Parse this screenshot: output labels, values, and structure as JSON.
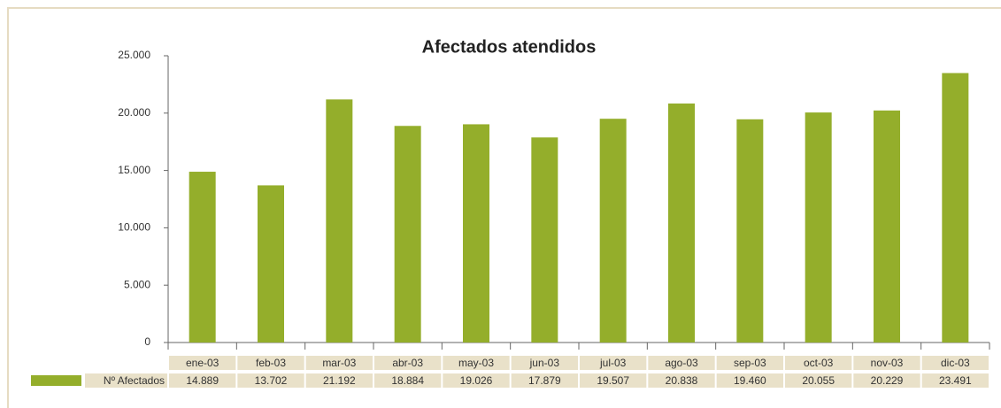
{
  "chart_data": {
    "type": "bar",
    "title": "Afectados atendidos",
    "categories": [
      "ene-03",
      "feb-03",
      "mar-03",
      "abr-03",
      "may-03",
      "jun-03",
      "jul-03",
      "ago-03",
      "sep-03",
      "oct-03",
      "nov-03",
      "dic-03"
    ],
    "series": [
      {
        "name": "Nº Afectados",
        "color": "#94ae2b",
        "values": [
          14889,
          13702,
          21192,
          18884,
          19026,
          17879,
          19507,
          20838,
          19460,
          20055,
          20229,
          23491
        ],
        "value_labels": [
          "14.889",
          "13.702",
          "21.192",
          "18.884",
          "19.026",
          "17.879",
          "19.507",
          "20.838",
          "19.460",
          "20.055",
          "20.229",
          "23.491"
        ]
      }
    ],
    "ylim": [
      0,
      25000
    ],
    "yticks": [
      0,
      {
        "value": 5000,
        "label": "5.000"
      },
      {
        "value": 10000,
        "label": "10.000"
      },
      {
        "value": 15000,
        "label": "15.000"
      },
      {
        "value": 20000,
        "label": "20.000"
      },
      {
        "value": 25000,
        "label": "25.000"
      }
    ]
  }
}
